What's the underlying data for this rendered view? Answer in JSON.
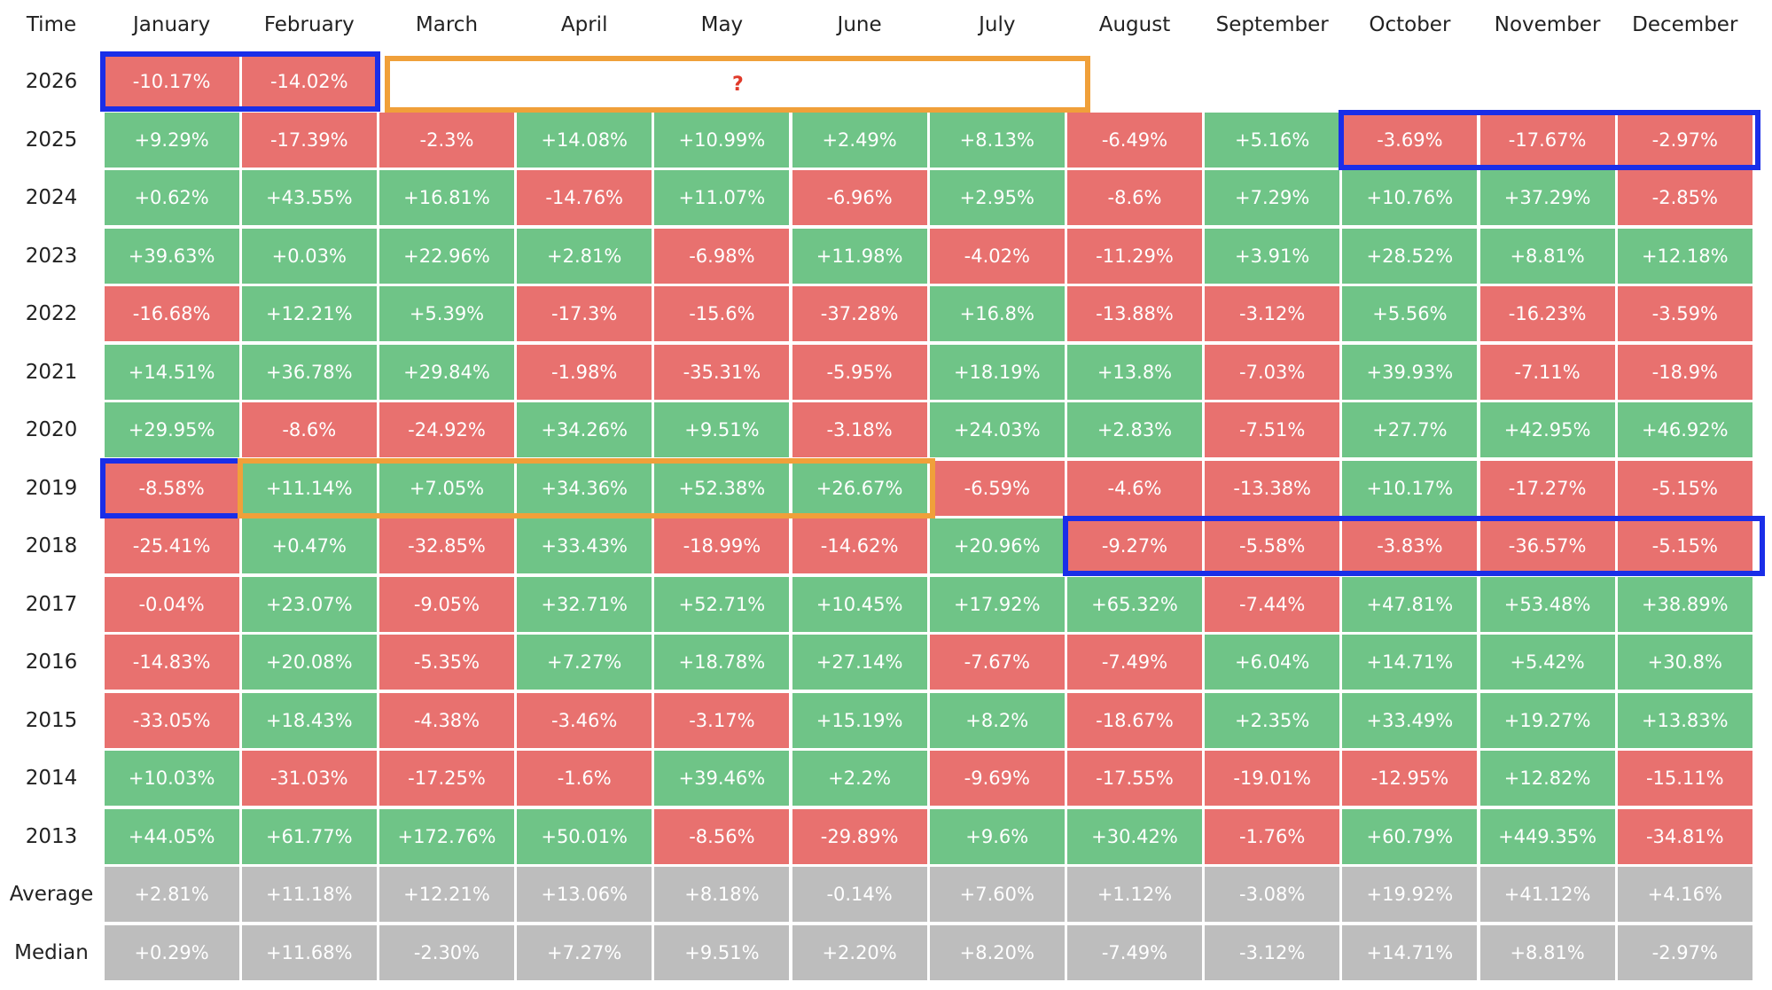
{
  "table": {
    "columns": [
      "Time",
      "January",
      "February",
      "March",
      "April",
      "May",
      "June",
      "July",
      "August",
      "September",
      "October",
      "November",
      "December"
    ],
    "rows": [
      {
        "label": "2026",
        "cells": [
          "-10.17%",
          "-14.02%"
        ]
      },
      {
        "label": "2025",
        "cells": [
          "+9.29%",
          "-17.39%",
          "-2.3%",
          "+14.08%",
          "+10.99%",
          "+2.49%",
          "+8.13%",
          "-6.49%",
          "+5.16%",
          "-3.69%",
          "-17.67%",
          "-2.97%"
        ]
      },
      {
        "label": "2024",
        "cells": [
          "+0.62%",
          "+43.55%",
          "+16.81%",
          "-14.76%",
          "+11.07%",
          "-6.96%",
          "+2.95%",
          "-8.6%",
          "+7.29%",
          "+10.76%",
          "+37.29%",
          "-2.85%"
        ]
      },
      {
        "label": "2023",
        "cells": [
          "+39.63%",
          "+0.03%",
          "+22.96%",
          "+2.81%",
          "-6.98%",
          "+11.98%",
          "-4.02%",
          "-11.29%",
          "+3.91%",
          "+28.52%",
          "+8.81%",
          "+12.18%"
        ]
      },
      {
        "label": "2022",
        "cells": [
          "-16.68%",
          "+12.21%",
          "+5.39%",
          "-17.3%",
          "-15.6%",
          "-37.28%",
          "+16.8%",
          "-13.88%",
          "-3.12%",
          "+5.56%",
          "-16.23%",
          "-3.59%"
        ]
      },
      {
        "label": "2021",
        "cells": [
          "+14.51%",
          "+36.78%",
          "+29.84%",
          "-1.98%",
          "-35.31%",
          "-5.95%",
          "+18.19%",
          "+13.8%",
          "-7.03%",
          "+39.93%",
          "-7.11%",
          "-18.9%"
        ]
      },
      {
        "label": "2020",
        "cells": [
          "+29.95%",
          "-8.6%",
          "-24.92%",
          "+34.26%",
          "+9.51%",
          "-3.18%",
          "+24.03%",
          "+2.83%",
          "-7.51%",
          "+27.7%",
          "+42.95%",
          "+46.92%"
        ]
      },
      {
        "label": "2019",
        "cells": [
          "-8.58%",
          "+11.14%",
          "+7.05%",
          "+34.36%",
          "+52.38%",
          "+26.67%",
          "-6.59%",
          "-4.6%",
          "-13.38%",
          "+10.17%",
          "-17.27%",
          "-5.15%"
        ]
      },
      {
        "label": "2018",
        "cells": [
          "-25.41%",
          "+0.47%",
          "-32.85%",
          "+33.43%",
          "-18.99%",
          "-14.62%",
          "+20.96%",
          "-9.27%",
          "-5.58%",
          "-3.83%",
          "-36.57%",
          "-5.15%"
        ]
      },
      {
        "label": "2017",
        "cells": [
          "-0.04%",
          "+23.07%",
          "-9.05%",
          "+32.71%",
          "+52.71%",
          "+10.45%",
          "+17.92%",
          "+65.32%",
          "-7.44%",
          "+47.81%",
          "+53.48%",
          "+38.89%"
        ]
      },
      {
        "label": "2016",
        "cells": [
          "-14.83%",
          "+20.08%",
          "-5.35%",
          "+7.27%",
          "+18.78%",
          "+27.14%",
          "-7.67%",
          "-7.49%",
          "+6.04%",
          "+14.71%",
          "+5.42%",
          "+30.8%"
        ]
      },
      {
        "label": "2015",
        "cells": [
          "-33.05%",
          "+18.43%",
          "-4.38%",
          "-3.46%",
          "-3.17%",
          "+15.19%",
          "+8.2%",
          "-18.67%",
          "+2.35%",
          "+33.49%",
          "+19.27%",
          "+13.83%"
        ]
      },
      {
        "label": "2014",
        "cells": [
          "+10.03%",
          "-31.03%",
          "-17.25%",
          "-1.6%",
          "+39.46%",
          "+2.2%",
          "-9.69%",
          "-17.55%",
          "-19.01%",
          "-12.95%",
          "+12.82%",
          "-15.11%"
        ]
      },
      {
        "label": "2013",
        "cells": [
          "+44.05%",
          "+61.77%",
          "+172.76%",
          "+50.01%",
          "-8.56%",
          "-29.89%",
          "+9.6%",
          "+30.42%",
          "-1.76%",
          "+60.79%",
          "+449.35%",
          "-34.81%"
        ]
      }
    ],
    "summary": [
      {
        "label": "Average",
        "cells": [
          "+2.81%",
          "+11.18%",
          "+12.21%",
          "+13.06%",
          "+8.18%",
          "-0.14%",
          "+7.60%",
          "+1.12%",
          "-3.08%",
          "+19.92%",
          "+41.12%",
          "+4.16%"
        ]
      },
      {
        "label": "Median",
        "cells": [
          "+0.29%",
          "+11.68%",
          "-2.30%",
          "+7.27%",
          "+9.51%",
          "+2.20%",
          "+8.20%",
          "-7.49%",
          "-3.12%",
          "+14.71%",
          "+8.81%",
          "-2.97%"
        ]
      }
    ],
    "annotation": "?"
  }
}
